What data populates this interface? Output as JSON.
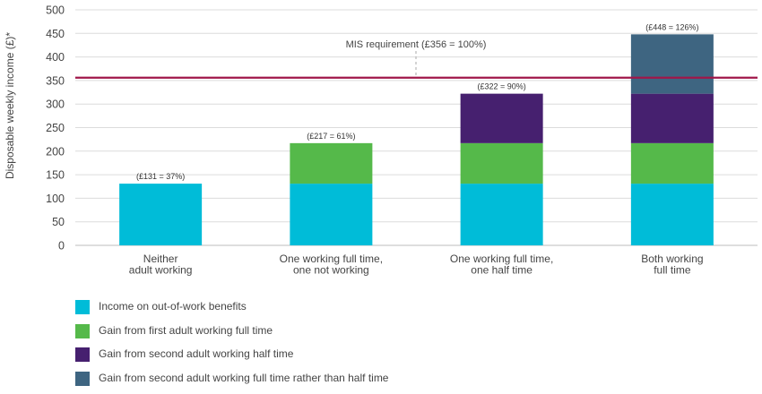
{
  "chart_data": {
    "type": "bar",
    "stacked": true,
    "ylabel": "Disposable weekly income (£)*",
    "xlabel": "",
    "ylim": [
      0,
      500
    ],
    "yticks": [
      0,
      50,
      100,
      150,
      200,
      250,
      300,
      350,
      400,
      450,
      500
    ],
    "grid": true,
    "categories": [
      [
        "Neither",
        "adult working"
      ],
      [
        "One working full time,",
        "one not working"
      ],
      [
        "One working full time,",
        "one half time"
      ],
      [
        "Both working",
        "full time"
      ]
    ],
    "series": [
      {
        "name": "Income on out-of-work benefits",
        "color": "#00bcd8",
        "values": [
          131,
          131,
          131,
          131
        ]
      },
      {
        "name": "Gain from first adult working full time",
        "color": "#55b94a",
        "values": [
          0,
          86,
          86,
          86
        ]
      },
      {
        "name": "Gain from second adult working half time",
        "color": "#46206f",
        "values": [
          0,
          0,
          105,
          105
        ]
      },
      {
        "name": "Gain from second adult working full time rather than half time",
        "color": "#3e6581",
        "values": [
          0,
          0,
          0,
          126
        ]
      }
    ],
    "totals_labels": [
      "(£131 = 37%)",
      "(£217 = 61%)",
      "(£322 = 90%)",
      "(£448 = 126%)"
    ],
    "reference_line": {
      "value": 356,
      "label": "MIS requirement (£356 = 100%)",
      "color": "#a0174a"
    },
    "legend_position": "bottom-left"
  }
}
